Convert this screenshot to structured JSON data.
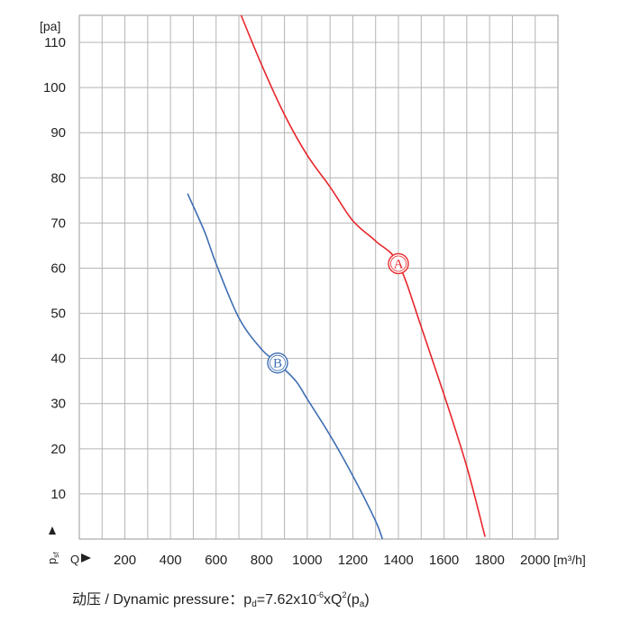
{
  "chart_data": {
    "type": "line",
    "y_unit": "[pa]",
    "x_unit": "[m³/h]",
    "y_axis_symbol": "p",
    "y_axis_symbol_sub": "sf",
    "x_axis_symbol": "Q",
    "xlim": [
      0,
      2100
    ],
    "ylim": [
      0,
      116
    ],
    "x_ticks": [
      200,
      400,
      600,
      800,
      1000,
      1200,
      1400,
      1600,
      1800,
      2000
    ],
    "y_ticks": [
      10,
      20,
      30,
      40,
      50,
      60,
      70,
      80,
      90,
      100,
      110
    ],
    "grid": true,
    "series": [
      {
        "name": "A",
        "color": "#e8262b",
        "marker_point": [
          1400,
          61
        ],
        "points": [
          [
            710,
            116
          ],
          [
            800,
            105
          ],
          [
            900,
            94
          ],
          [
            1000,
            85
          ],
          [
            1100,
            78
          ],
          [
            1200,
            70.5
          ],
          [
            1300,
            66
          ],
          [
            1400,
            61
          ],
          [
            1500,
            47
          ],
          [
            1600,
            32
          ],
          [
            1700,
            16
          ],
          [
            1780,
            0.5
          ]
        ]
      },
      {
        "name": "B",
        "color": "#3f6fb3",
        "marker_point": [
          870,
          39
        ],
        "points": [
          [
            475,
            76.5
          ],
          [
            550,
            68
          ],
          [
            600,
            61
          ],
          [
            700,
            49
          ],
          [
            800,
            42
          ],
          [
            870,
            39
          ],
          [
            950,
            35
          ],
          [
            1000,
            31
          ],
          [
            1100,
            23
          ],
          [
            1200,
            14
          ],
          [
            1300,
            4
          ],
          [
            1330,
            0
          ]
        ]
      }
    ]
  },
  "caption": {
    "prefix": "动压 / Dynamic pressure：",
    "p": "p",
    "p_sub": "d",
    "eq_mid": "=7.62x10",
    "exp": "-6",
    "eq_q": "xQ",
    "q_exp": "2",
    "open": "(p",
    "pa_sub": "a",
    "close": ")"
  }
}
